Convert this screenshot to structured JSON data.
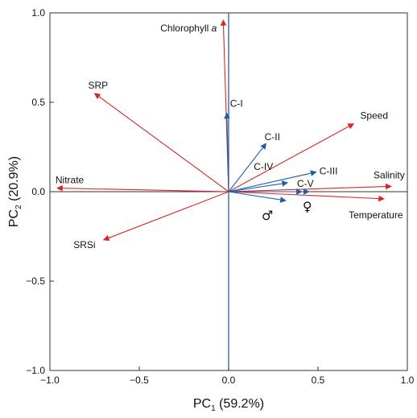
{
  "chart_data": {
    "type": "scatter",
    "subtype": "pca-biplot",
    "title": "",
    "xlabel": {
      "main": "PC",
      "sub": "1",
      "rest": " (59.2%)"
    },
    "ylabel": {
      "main": "PC",
      "sub": "2",
      "rest": " (20.9%)"
    },
    "xlim": [
      -1.0,
      1.0
    ],
    "ylim": [
      -1.0,
      1.0
    ],
    "xticks": [
      -1.0,
      -0.5,
      0.0,
      0.5,
      1.0
    ],
    "yticks": [
      -1.0,
      -0.5,
      0.0,
      0.5,
      1.0
    ],
    "xtick_labels": [
      "−1.0",
      "−0.5",
      "0.0",
      "0.5",
      "1.0"
    ],
    "ytick_labels": [
      "−1.0",
      "−0.5",
      "0.0",
      "0.5",
      "1.0"
    ],
    "grid": false,
    "zero_lines": true,
    "colors": {
      "environmental": "#d62728",
      "copepod": "#1f5fa8",
      "axis": "#333333",
      "zero_line_vertical": "#1f4e9a"
    },
    "vectors": [
      {
        "name": "Chlorophyll a",
        "group": "environmental",
        "x": -0.03,
        "y": 0.96
      },
      {
        "name": "SRP",
        "group": "environmental",
        "x": -0.75,
        "y": 0.55
      },
      {
        "name": "Speed",
        "group": "environmental",
        "x": 0.7,
        "y": 0.38
      },
      {
        "name": "Nitrate",
        "group": "environmental",
        "x": -0.96,
        "y": 0.02
      },
      {
        "name": "Salinity",
        "group": "environmental",
        "x": 0.91,
        "y": 0.03
      },
      {
        "name": "Temperature",
        "group": "environmental",
        "x": 0.87,
        "y": -0.04
      },
      {
        "name": "SRSi",
        "group": "environmental",
        "x": -0.7,
        "y": -0.27
      },
      {
        "name": "C-I",
        "group": "copepod",
        "x": -0.01,
        "y": 0.44
      },
      {
        "name": "C-II",
        "group": "copepod",
        "x": 0.21,
        "y": 0.27
      },
      {
        "name": "C-III",
        "group": "copepod",
        "x": 0.49,
        "y": 0.11
      },
      {
        "name": "C-IV",
        "group": "copepod",
        "x": 0.33,
        "y": 0.05
      },
      {
        "name": "C-V",
        "group": "copepod",
        "x": 0.41,
        "y": 0.0
      },
      {
        "name": "♂",
        "group": "copepod",
        "x": 0.32,
        "y": -0.05
      },
      {
        "name": "♀",
        "group": "copepod",
        "x": 0.45,
        "y": 0.0
      }
    ]
  }
}
